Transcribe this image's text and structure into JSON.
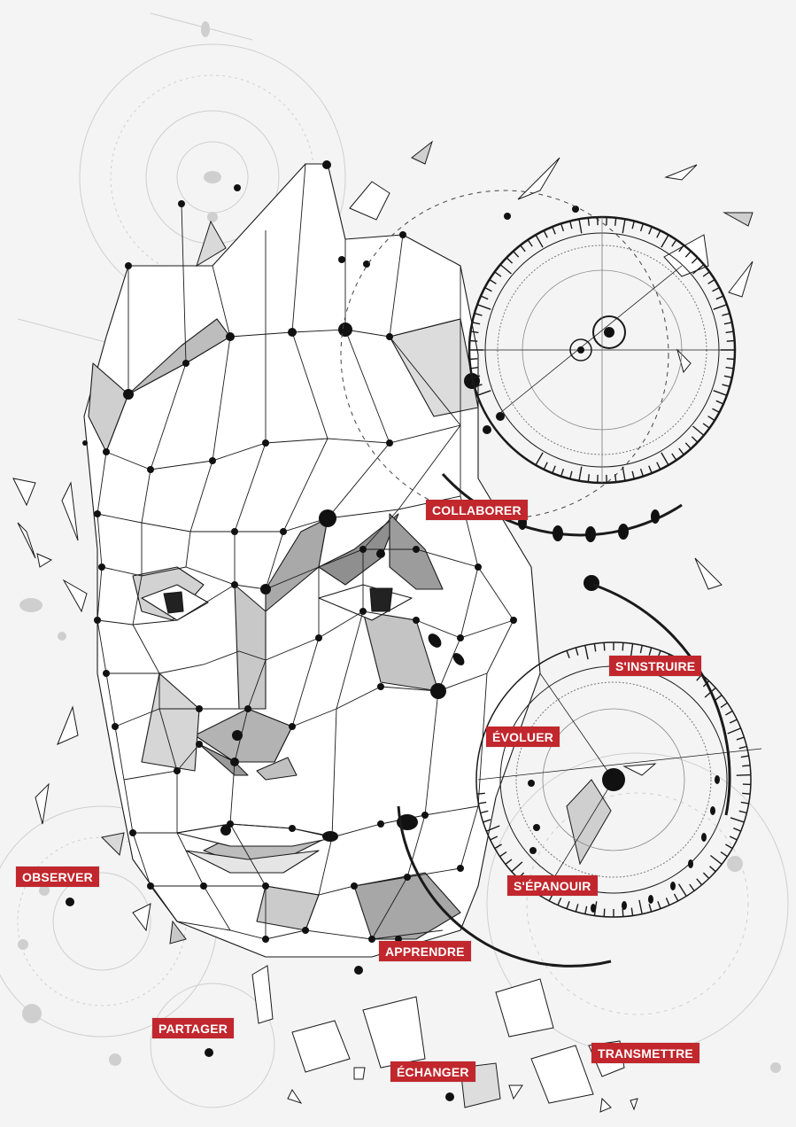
{
  "colors": {
    "background": "#f4f4f4",
    "tag_fill": "#c1272d",
    "tag_text": "#ffffff",
    "line": "#1a1a1a"
  },
  "tags": {
    "collaborer": "COLLABORER",
    "sinstruire": "S'INSTRUIRE",
    "evoluer": "ÉVOLUER",
    "observer": "OBSERVER",
    "sepanouir": "S'ÉPANOUIR",
    "apprendre": "APPRENDRE",
    "partager": "PARTAGER",
    "transmettre": "TRANSMETTRE",
    "echanger": "ÉCHANGER"
  },
  "illustration": {
    "subject": "low-poly wireframe head with gear-like dials"
  }
}
